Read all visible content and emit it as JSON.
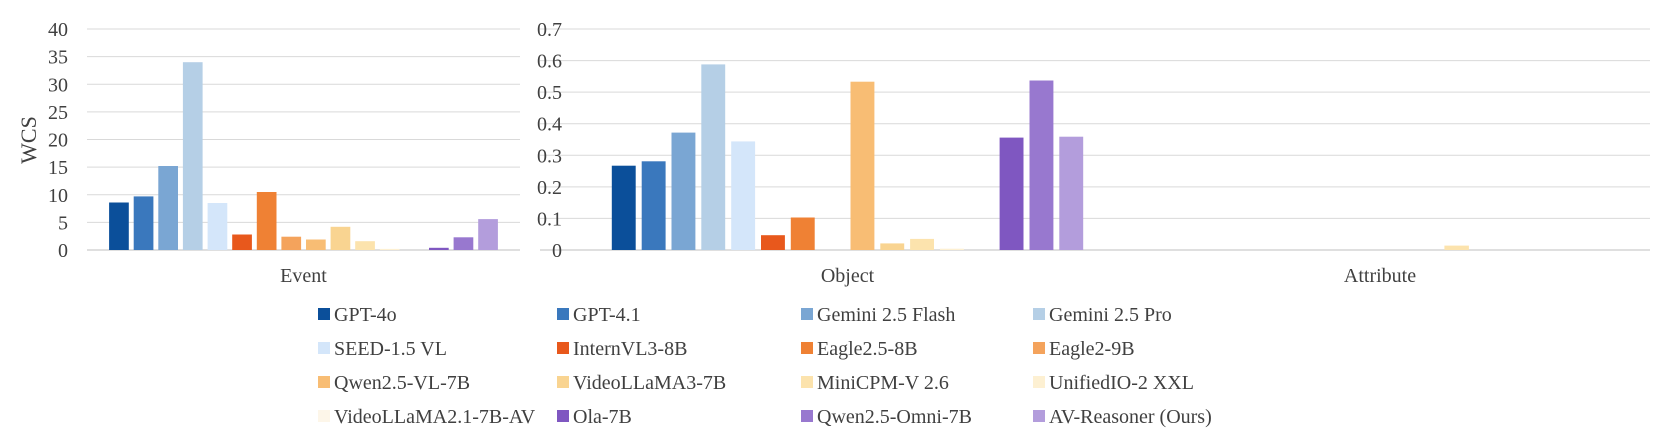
{
  "chart_data": {
    "type": "bar",
    "ylabel": "WCS",
    "series": [
      {
        "name": "GPT-4o",
        "color": "#0b4f9a"
      },
      {
        "name": "GPT-4.1",
        "color": "#3a78bd"
      },
      {
        "name": "Gemini 2.5 Flash",
        "color": "#7aa6d3"
      },
      {
        "name": "Gemini 2.5 Pro",
        "color": "#b5cfe6"
      },
      {
        "name": "SEED-1.5 VL",
        "color": "#d4e6fa"
      },
      {
        "name": "InternVL3-8B",
        "color": "#e8581c"
      },
      {
        "name": "Eagle2.5-8B",
        "color": "#ef8134"
      },
      {
        "name": "Eagle2-9B",
        "color": "#f4a35c"
      },
      {
        "name": "Qwen2.5-VL-7B",
        "color": "#f8bd74"
      },
      {
        "name": "VideoLLaMA3-7B",
        "color": "#f9d491"
      },
      {
        "name": "MiniCPM-V 2.6",
        "color": "#fce3ad"
      },
      {
        "name": "UnifiedIO-2 XXL",
        "color": "#fdf0d2"
      },
      {
        "name": "VideoLLaMA2.1-7B-AV",
        "color": "#fdf6e9"
      },
      {
        "name": "Ola-7B",
        "color": "#7f57c1"
      },
      {
        "name": "Qwen2.5-Omni-7B",
        "color": "#9878cf"
      },
      {
        "name": "AV-Reasoner (Ours)",
        "color": "#b39ddc"
      }
    ],
    "panels": [
      {
        "category": "Event",
        "ylim": [
          0,
          40
        ],
        "yticks": [
          "0",
          "5",
          "10",
          "15",
          "20",
          "25",
          "30",
          "35",
          "40"
        ],
        "values": [
          8.6,
          9.7,
          15.2,
          34.0,
          8.5,
          2.8,
          10.5,
          2.4,
          1.9,
          4.2,
          1.6,
          0.2,
          0,
          0.4,
          2.3,
          5.6
        ]
      },
      {
        "category": "Object",
        "ylim": [
          0,
          0.7
        ],
        "yticks": [
          "0",
          "0.1",
          "0.2",
          "0.3",
          "0.4",
          "0.5",
          "0.6",
          "0.7"
        ],
        "values": [
          0.267,
          0.281,
          0.372,
          0.588,
          0.344,
          0.047,
          0.103,
          0,
          0.533,
          0.021,
          0.035,
          0.004,
          0,
          0.356,
          0.537,
          0.359
        ]
      },
      {
        "category": "Attribute",
        "values": [
          0,
          0,
          0,
          0,
          0,
          0,
          0,
          0,
          0,
          0,
          0.014,
          0,
          0,
          0,
          0,
          0
        ]
      }
    ]
  }
}
